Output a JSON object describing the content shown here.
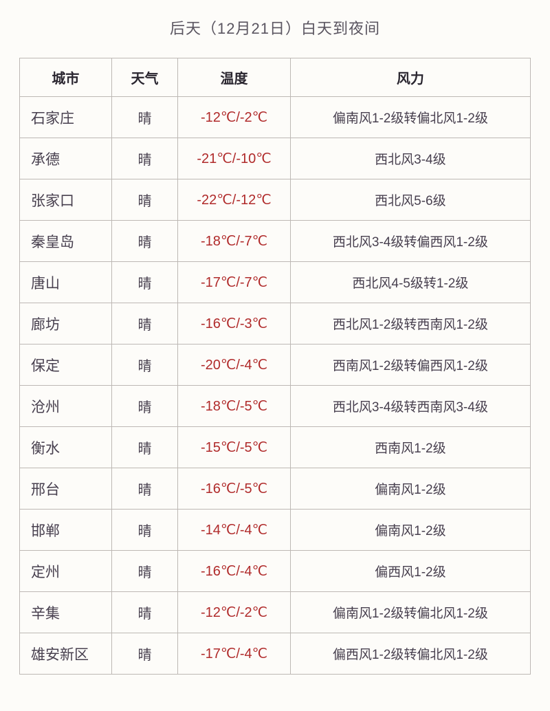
{
  "title": "后天（12月21日）白天到夜间",
  "headers": {
    "city": "城市",
    "weather": "天气",
    "temp": "温度",
    "wind": "风力"
  },
  "rows": [
    {
      "city": "石家庄",
      "weather": "晴",
      "temp": "-12℃/-2℃",
      "wind": "偏南风1-2级转偏北风1-2级"
    },
    {
      "city": "承德",
      "weather": "晴",
      "temp": "-21℃/-10℃",
      "wind": "西北风3-4级"
    },
    {
      "city": "张家口",
      "weather": "晴",
      "temp": "-22℃/-12℃",
      "wind": "西北风5-6级"
    },
    {
      "city": "秦皇岛",
      "weather": "晴",
      "temp": "-18℃/-7℃",
      "wind": "西北风3-4级转偏西风1-2级"
    },
    {
      "city": "唐山",
      "weather": "晴",
      "temp": "-17℃/-7℃",
      "wind": "西北风4-5级转1-2级"
    },
    {
      "city": "廊坊",
      "weather": "晴",
      "temp": "-16℃/-3℃",
      "wind": "西北风1-2级转西南风1-2级"
    },
    {
      "city": "保定",
      "weather": "晴",
      "temp": "-20℃/-4℃",
      "wind": "西南风1-2级转偏西风1-2级"
    },
    {
      "city": "沧州",
      "weather": "晴",
      "temp": "-18℃/-5℃",
      "wind": "西北风3-4级转西南风3-4级"
    },
    {
      "city": "衡水",
      "weather": "晴",
      "temp": "-15℃/-5℃",
      "wind": "西南风1-2级"
    },
    {
      "city": "邢台",
      "weather": "晴",
      "temp": "-16℃/-5℃",
      "wind": "偏南风1-2级"
    },
    {
      "city": "邯郸",
      "weather": "晴",
      "temp": "-14℃/-4℃",
      "wind": "偏南风1-2级"
    },
    {
      "city": "定州",
      "weather": "晴",
      "temp": "-16℃/-4℃",
      "wind": "偏西风1-2级"
    },
    {
      "city": "辛集",
      "weather": "晴",
      "temp": "-12℃/-2℃",
      "wind": "偏南风1-2级转偏北风1-2级"
    },
    {
      "city": "雄安新区",
      "weather": "晴",
      "temp": "-17℃/-4℃",
      "wind": "偏西风1-2级转偏北风1-2级"
    }
  ],
  "colors": {
    "background": "#fdfcf9",
    "border": "#bdb8b4",
    "text": "#48404f",
    "header_text": "#2a2630",
    "title_text": "#5a5560",
    "temp_text": "#b02a2a"
  }
}
